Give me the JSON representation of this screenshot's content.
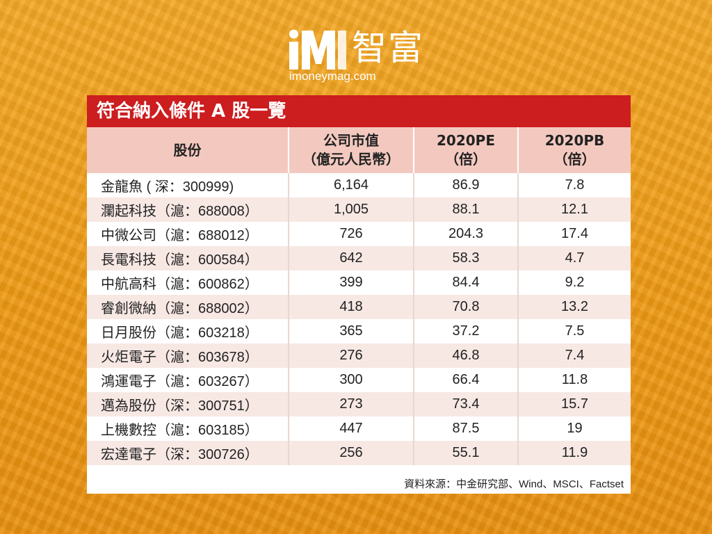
{
  "logo": {
    "mark": "iM",
    "name": "智富",
    "url": "imoneymag.com"
  },
  "table": {
    "title": "符合納入條件 A 股一覽",
    "headers": [
      {
        "line1": "股份",
        "line2": ""
      },
      {
        "line1": "公司市值",
        "line2": "（億元人民幣）"
      },
      {
        "line1": "2020PE",
        "line2": "（倍）"
      },
      {
        "line1": "2020PB",
        "line2": "（倍）"
      }
    ],
    "rows": [
      {
        "name": "金龍魚 ( 深：300999)",
        "market_cap": "6,164",
        "pe": "86.9",
        "pb": "7.8"
      },
      {
        "name": "瀾起科技（滬：688008）",
        "market_cap": "1,005",
        "pe": "88.1",
        "pb": "12.1"
      },
      {
        "name": "中微公司（滬：688012）",
        "market_cap": "726",
        "pe": "204.3",
        "pb": "17.4"
      },
      {
        "name": "長電科技（滬：600584）",
        "market_cap": "642",
        "pe": "58.3",
        "pb": "4.7"
      },
      {
        "name": "中航高科（滬：600862）",
        "market_cap": "399",
        "pe": "84.4",
        "pb": "9.2"
      },
      {
        "name": "睿創微納（滬：688002）",
        "market_cap": "418",
        "pe": "70.8",
        "pb": "13.2"
      },
      {
        "name": "日月股份（滬：603218）",
        "market_cap": "365",
        "pe": "37.2",
        "pb": "7.5"
      },
      {
        "name": "火炬電子（滬：603678）",
        "market_cap": "276",
        "pe": "46.8",
        "pb": "7.4"
      },
      {
        "name": "鴻運電子（滬：603267）",
        "market_cap": "300",
        "pe": "66.4",
        "pb": "11.8"
      },
      {
        "name": "邁為股份（深：300751）",
        "market_cap": "273",
        "pe": "73.4",
        "pb": "15.7"
      },
      {
        "name": "上機數控（滬：603185）",
        "market_cap": "447",
        "pe": "87.5",
        "pb": "19"
      },
      {
        "name": "宏達電子（深：300726）",
        "market_cap": "256",
        "pe": "55.1",
        "pb": "11.9"
      }
    ],
    "source": "資料來源：中金研究部、Wind、MSCI、Factset"
  },
  "colors": {
    "background": "#f2a21c",
    "title_bar": "#cc1d1f",
    "header_row": "#f3c9bf",
    "stripe_row": "#f7e8e4"
  }
}
